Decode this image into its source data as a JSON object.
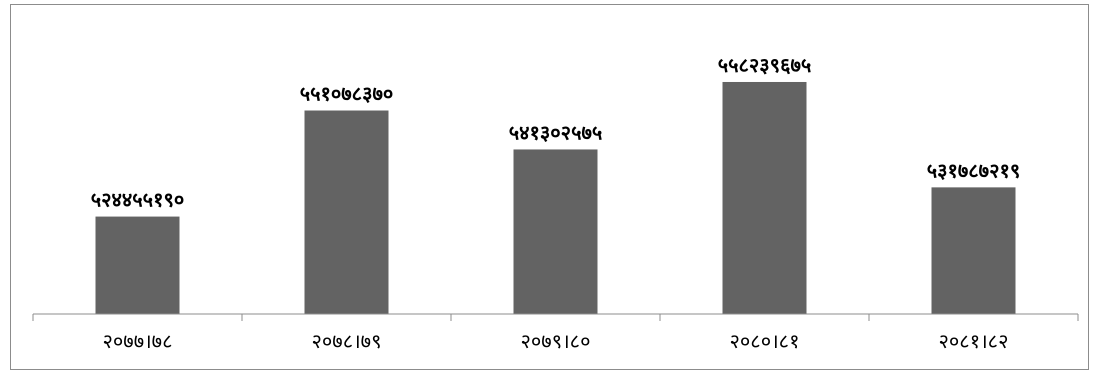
{
  "chart_data": {
    "type": "bar",
    "title": "",
    "xlabel": "",
    "ylabel": "",
    "categories": [
      "२०७७।७८",
      "२०७८।७९",
      "२०७९।८०",
      "२०८०।८१",
      "२०८१।८२"
    ],
    "values": [
      524455190,
      551078370,
      541302575,
      558239675,
      531787219
    ],
    "value_labels": [
      "५२४४५५१९०",
      "५५१०७८३७०",
      "५४१३०२५७५",
      "५५८२३९६७५",
      "५३१७८७२१९"
    ],
    "ylim": [
      500000000,
      562000000
    ],
    "bar_color": "#636363",
    "grid": false,
    "legend": "none"
  }
}
